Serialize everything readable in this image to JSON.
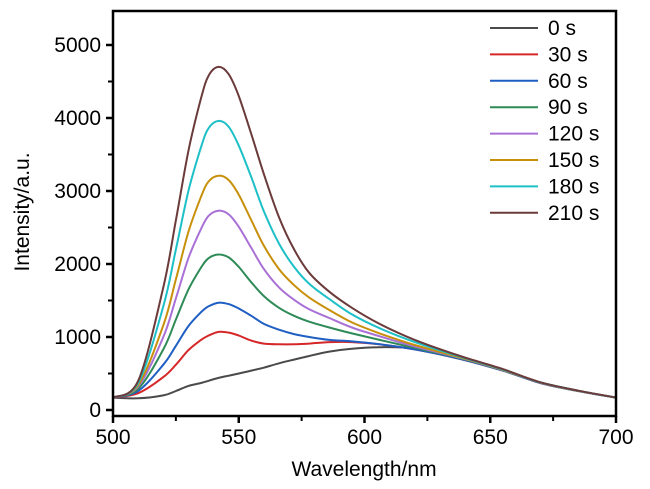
{
  "chart_data": {
    "type": "line",
    "title": "",
    "xlabel": "Wavelength/nm",
    "ylabel": "Intensity/a.u.",
    "xlim": [
      500,
      700
    ],
    "ylim": [
      0,
      5450
    ],
    "xticks": [
      500,
      550,
      600,
      650,
      700
    ],
    "xtick_labels": [
      "500",
      "550",
      "600",
      "650",
      "700"
    ],
    "yticks": [
      0,
      1000,
      2000,
      3000,
      4000,
      5000
    ],
    "ytick_labels": [
      "0",
      "1000",
      "2000",
      "3000",
      "4000",
      "5000"
    ],
    "grid": false,
    "legend_position": "top-right",
    "x": [
      500,
      510,
      520,
      525,
      530,
      535,
      538,
      542,
      546,
      550,
      555,
      560,
      566,
      572,
      578,
      586,
      595,
      606,
      620,
      638,
      655,
      670,
      685,
      700
    ],
    "series": [
      {
        "name": "0 s",
        "color": "#4a4a4a",
        "values": [
          170,
          160,
          200,
          260,
          330,
          370,
          400,
          440,
          470,
          500,
          540,
          580,
          640,
          690,
          740,
          800,
          840,
          860,
          840,
          700,
          540,
          370,
          260,
          170
        ]
      },
      {
        "name": "30 s",
        "color": "#d62728",
        "values": [
          170,
          230,
          450,
          620,
          820,
          960,
          1020,
          1070,
          1060,
          1020,
          950,
          910,
          900,
          900,
          910,
          930,
          930,
          900,
          830,
          700,
          540,
          370,
          260,
          170
        ]
      },
      {
        "name": "60 s",
        "color": "#1f5fc4",
        "values": [
          170,
          260,
          620,
          880,
          1150,
          1340,
          1420,
          1470,
          1450,
          1390,
          1290,
          1180,
          1100,
          1040,
          1000,
          960,
          940,
          900,
          830,
          700,
          540,
          370,
          260,
          170
        ]
      },
      {
        "name": "90 s",
        "color": "#2e8b57",
        "values": [
          170,
          290,
          830,
          1240,
          1650,
          1950,
          2080,
          2130,
          2090,
          1960,
          1750,
          1560,
          1400,
          1290,
          1210,
          1130,
          1050,
          960,
          850,
          710,
          545,
          375,
          262,
          170
        ]
      },
      {
        "name": "120 s",
        "color": "#a970d6",
        "values": [
          170,
          320,
          1000,
          1530,
          2080,
          2480,
          2660,
          2730,
          2680,
          2510,
          2220,
          1930,
          1680,
          1510,
          1380,
          1260,
          1130,
          1010,
          870,
          715,
          548,
          375,
          262,
          170
        ]
      },
      {
        "name": "150 s",
        "color": "#c8900a",
        "values": [
          170,
          340,
          1160,
          1790,
          2440,
          2920,
          3130,
          3210,
          3150,
          2950,
          2600,
          2250,
          1930,
          1710,
          1540,
          1370,
          1200,
          1050,
          890,
          720,
          550,
          377,
          263,
          170
        ]
      },
      {
        "name": "180 s",
        "color": "#1cc0c6",
        "values": [
          170,
          370,
          1420,
          2200,
          3000,
          3600,
          3860,
          3960,
          3880,
          3620,
          3190,
          2720,
          2280,
          1960,
          1730,
          1520,
          1310,
          1120,
          930,
          730,
          555,
          378,
          264,
          170
        ]
      },
      {
        "name": "210 s",
        "color": "#6b3a3a",
        "values": [
          170,
          400,
          1680,
          2600,
          3550,
          4270,
          4580,
          4700,
          4600,
          4300,
          3780,
          3230,
          2640,
          2200,
          1880,
          1620,
          1400,
          1180,
          960,
          740,
          560,
          380,
          265,
          170
        ]
      }
    ]
  }
}
